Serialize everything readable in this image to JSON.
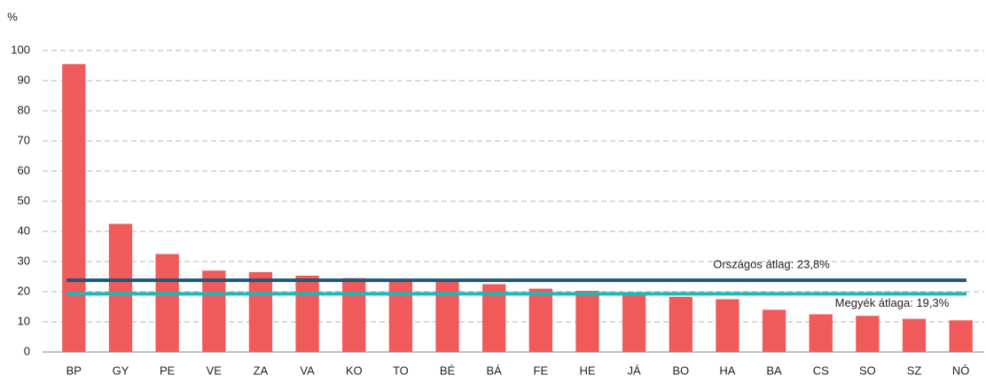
{
  "chart_data": {
    "type": "bar",
    "y_unit": "%",
    "categories": [
      "BP",
      "GY",
      "PE",
      "VE",
      "ZA",
      "VA",
      "KO",
      "TO",
      "BÉ",
      "BÁ",
      "FE",
      "HE",
      "JÁ",
      "BO",
      "HA",
      "BA",
      "CS",
      "SO",
      "SZ",
      "NÓ"
    ],
    "values": [
      95.5,
      42.5,
      32.5,
      27,
      26.5,
      25.3,
      24.5,
      23.5,
      23.3,
      22.5,
      21,
      20.3,
      19.5,
      18.3,
      17.5,
      14,
      12.5,
      12,
      11,
      10.5
    ],
    "color": "#f15a5a",
    "ylim": [
      0,
      100
    ],
    "yticks": [
      0,
      10,
      20,
      30,
      40,
      50,
      60,
      70,
      80,
      90,
      100
    ],
    "grid": true,
    "reference_lines": [
      {
        "value": 23.8,
        "label": "Országos átlag: 23,8%",
        "color": "#1d5878"
      },
      {
        "value": 19.3,
        "label": "Megyék átlaga: 19,3%",
        "color": "#22b6b4"
      }
    ]
  }
}
